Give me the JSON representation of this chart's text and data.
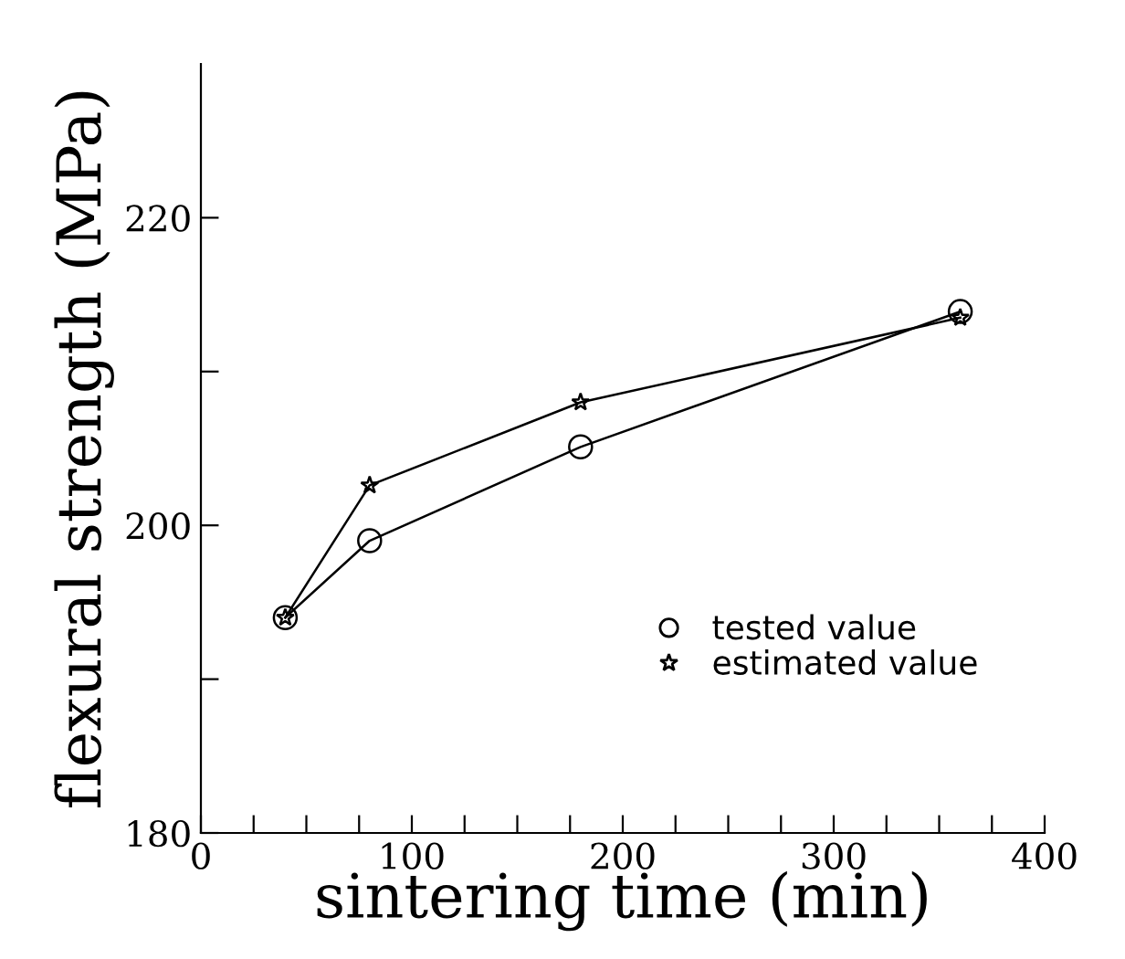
{
  "chart_data": {
    "type": "line",
    "xlabel": "sintering time (min)",
    "ylabel": "flexural strength (MPa)",
    "x": [
      40,
      80,
      180,
      360
    ],
    "series": [
      {
        "name": "tested value",
        "color": "#000000",
        "marker": "circle",
        "values": [
          194,
          199,
          205.1,
          213.9
        ]
      },
      {
        "name": "estimated value",
        "color": "#000000",
        "marker": "star",
        "values": [
          194,
          202.6,
          208,
          213.5
        ]
      }
    ],
    "xlim": [
      0,
      400
    ],
    "ylim": [
      180,
      230
    ],
    "xticks": [
      0,
      {
        "value": 25,
        "label": null
      },
      {
        "value": 50,
        "label": null
      },
      {
        "value": 75,
        "label": null
      },
      100,
      {
        "value": 125,
        "label": null
      },
      {
        "value": 150,
        "label": null
      },
      {
        "value": 175,
        "label": null
      },
      200,
      {
        "value": 225,
        "label": null
      },
      {
        "value": 250,
        "label": null
      },
      {
        "value": 275,
        "label": null
      },
      300,
      {
        "value": 325,
        "label": null
      },
      {
        "value": 350,
        "label": null
      },
      {
        "value": 375,
        "label": null
      },
      400
    ],
    "yticks": [
      180,
      {
        "value": 190,
        "label": null
      },
      200,
      {
        "value": 210,
        "label": null
      },
      220
    ],
    "legend": "bottom right",
    "grid": false,
    "line_style": "solid"
  }
}
